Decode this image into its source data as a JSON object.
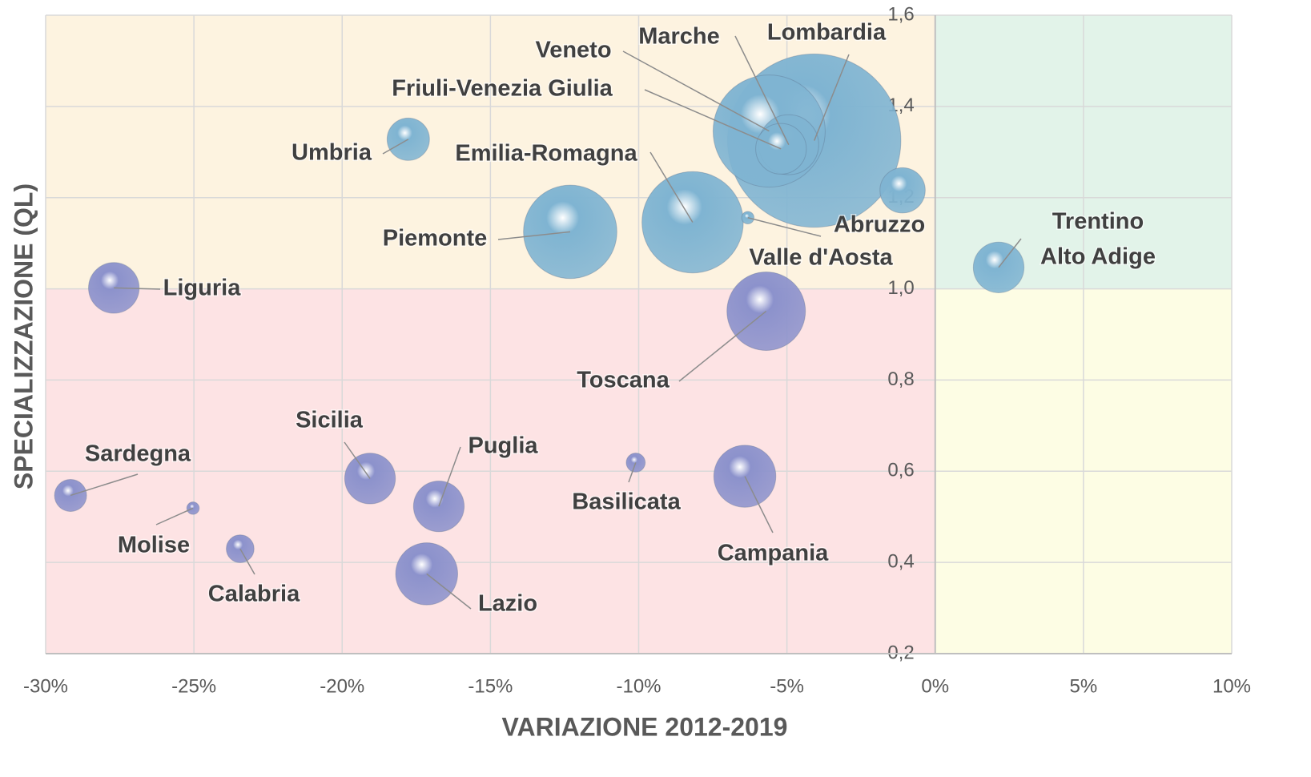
{
  "chart_data": {
    "type": "bubble",
    "x_label": "VARIAZIONE 2012-2019",
    "y_label": "SPECIALIZZAZIONE (QL)",
    "point_labels": [
      [
        "Lombardia"
      ],
      [
        "Veneto"
      ],
      [
        "Marche"
      ],
      [
        "Friuli-Venezia Giulia"
      ],
      [
        "Emilia-Romagna"
      ],
      [
        "Piemonte"
      ],
      [
        "Umbria"
      ],
      [
        "Abruzzo"
      ],
      [
        "Valle d'Aosta"
      ],
      [
        "Trentino",
        "Alto Adige"
      ],
      [
        "Liguria"
      ],
      [
        "Toscana"
      ],
      [
        "Sardegna"
      ],
      [
        "Molise"
      ],
      [
        "Calabria"
      ],
      [
        "Sicilia"
      ],
      [
        "Puglia"
      ],
      [
        "Lazio"
      ],
      [
        "Basilicata"
      ],
      [
        "Campania"
      ]
    ],
    "x": [
      -4.08,
      -5.6,
      -4.94,
      -5.2,
      -8.18,
      -12.31,
      -17.77,
      -1.1,
      -6.32,
      2.14,
      -27.7,
      -5.7,
      -29.16,
      -25.03,
      -23.44,
      -19.06,
      -16.74,
      -17.15,
      -10.1,
      -6.42
    ],
    "values": [
      1.325,
      1.346,
      1.316,
      1.307,
      1.146,
      1.125,
      1.328,
      1.216,
      1.156,
      1.047,
      1.002,
      0.951,
      0.547,
      0.519,
      0.43,
      0.584,
      0.523,
      0.375,
      0.619,
      0.589
    ],
    "sizes": [
      117,
      49,
      14,
      10,
      40,
      34,
      7,
      8,
      0.6,
      10,
      10,
      24,
      4,
      0.6,
      3,
      10,
      10,
      15,
      1.4,
      15
    ],
    "colors": [
      "#7fb4d2",
      "#7fb4d2",
      "#7fb4d2",
      "#7fb4d2",
      "#7fb4d2",
      "#7fb4d2",
      "#7fb4d2",
      "#7fb4d2",
      "#7fb4d2",
      "#7fb4d2",
      "#8c92cc",
      "#8c92cc",
      "#8c92cc",
      "#8c92cc",
      "#8c92cc",
      "#8c92cc",
      "#8c92cc",
      "#8c92cc",
      "#8c92cc",
      "#8c92cc"
    ],
    "xlim": [
      -30,
      10
    ],
    "ylim": [
      0.2,
      1.6
    ],
    "xticks": [
      {
        "value": -30,
        "label": "-30%"
      },
      {
        "value": -25,
        "label": "-25%"
      },
      {
        "value": -20,
        "label": "-20%"
      },
      {
        "value": -15,
        "label": "-15%"
      },
      {
        "value": -10,
        "label": "-10%"
      },
      {
        "value": -5,
        "label": "-5%"
      },
      {
        "value": 0,
        "label": "0%"
      },
      {
        "value": 5,
        "label": "5%"
      },
      {
        "value": 10,
        "label": "10%"
      }
    ],
    "yticks": [
      {
        "value": 0.2,
        "label": "0,2"
      },
      {
        "value": 0.4,
        "label": "0,4"
      },
      {
        "value": 0.6,
        "label": "0,6"
      },
      {
        "value": 0.8,
        "label": "0,8"
      },
      {
        "value": 1.0,
        "label": "1,0"
      },
      {
        "value": 1.2,
        "label": "1,2"
      },
      {
        "value": 1.4,
        "label": "1,4"
      },
      {
        "value": 1.6,
        "label": "1,6"
      }
    ],
    "grid": true
  }
}
